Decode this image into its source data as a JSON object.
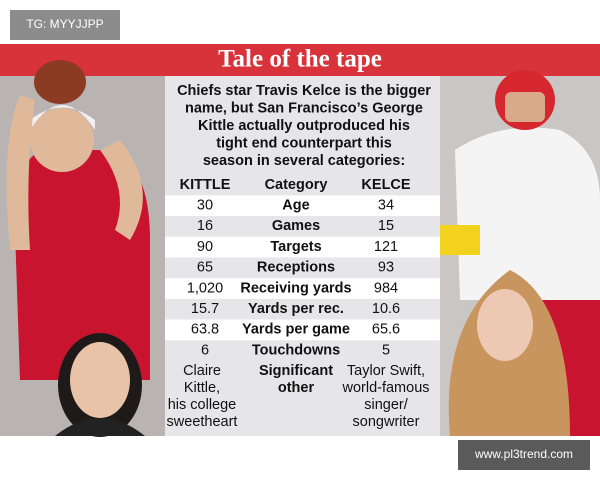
{
  "watermark": "TG: MYYJJPP",
  "title": "Tale of the tape",
  "intro": [
    "Chiefs star Travis Kelce is the bigger",
    "name, but San Francisco’s George",
    "Kittle actually outproduced his",
    "tight end counterpart this",
    "season in several categories:"
  ],
  "table": {
    "header": [
      "KITTLE",
      "Category",
      "KELCE"
    ],
    "rows": [
      [
        "30",
        "Age",
        "34"
      ],
      [
        "16",
        "Games",
        "15"
      ],
      [
        "90",
        "Targets",
        "121"
      ],
      [
        "65",
        "Receptions",
        "93"
      ],
      [
        "1,020",
        "Receiving yards",
        "984"
      ],
      [
        "15.7",
        "Yards per rec.",
        "10.6"
      ],
      [
        "63.8",
        "Yards per game",
        "65.6"
      ],
      [
        "6",
        "Touchdowns",
        "5"
      ]
    ],
    "last_row": [
      [
        "Claire",
        "Kittle,",
        "his college",
        "sweetheart"
      ],
      [
        "Significant",
        "other"
      ],
      [
        "Taylor Swift,",
        "world-famous",
        "singer/",
        "songwriter"
      ]
    ]
  },
  "footer_watermark": "www.pl3trend.com"
}
